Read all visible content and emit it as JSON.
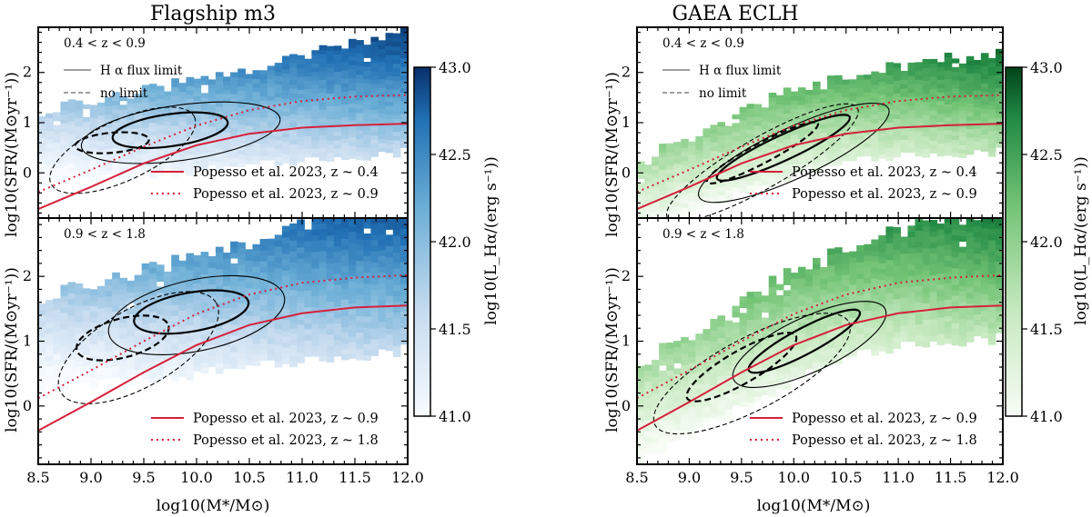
{
  "figure": {
    "shared": {
      "xlabel": "log10(M*/M⊙)",
      "ylabel": "log10(SFR/(M⊙yr⁻¹))",
      "xlim": [
        8.5,
        12.0
      ],
      "ylim_top": [
        -0.9,
        2.9
      ],
      "ylim_bottom": [
        -0.9,
        2.9
      ],
      "xticks": [
        "8.5",
        "9.0",
        "9.5",
        "10.0",
        "10.5",
        "11.0",
        "11.5",
        "12.0"
      ],
      "yticks": [
        "0",
        "1",
        "2"
      ],
      "colorbar_label": "log10(L_Hα/(erg s⁻¹))",
      "colorbar_ticks": [
        "41.0",
        "41.5",
        "42.0",
        "42.5",
        "43.0"
      ],
      "legend_solid": "H α flux limit",
      "legend_dashed": "no limit"
    },
    "colors": {
      "blue_cmap_low": "#f0f6fc",
      "blue_cmap_high": "#08306b",
      "green_cmap_low": "#f2faf0",
      "green_cmap_high": "#00441b",
      "popesso_line": "#d6203a"
    }
  },
  "chart_data": [
    {
      "type": "heatmap",
      "title": "Flagship m3",
      "panel": "top-left",
      "redshift_label": "0.4 < z < 0.9",
      "xlabel": "",
      "ylabel": "log10(SFR/(M⊙yr⁻¹))",
      "xlim": [
        8.5,
        12.0
      ],
      "ylim": [
        -0.9,
        2.9
      ],
      "color_range": [
        41.0,
        43.0
      ],
      "series": [
        {
          "name": "Popesso et al. 2023, z ~ 0.4",
          "style": "solid",
          "x": [
            8.5,
            9.0,
            9.5,
            10.0,
            10.5,
            11.0,
            11.5,
            12.0
          ],
          "y": [
            -0.72,
            -0.28,
            0.19,
            0.55,
            0.78,
            0.9,
            0.95,
            0.98
          ]
        },
        {
          "name": "Popesso et al. 2023, z ~ 0.9",
          "style": "dotted",
          "x": [
            8.5,
            9.0,
            9.5,
            10.0,
            10.5,
            11.0,
            11.5,
            12.0
          ],
          "y": [
            -0.38,
            0.06,
            0.52,
            0.94,
            1.25,
            1.43,
            1.52,
            1.55
          ]
        }
      ],
      "legend": [
        "Popesso et al. 2023, z ~ 0.4",
        "Popesso et al. 2023, z ~ 0.9"
      ]
    },
    {
      "type": "heatmap",
      "title": "GAEA ECLH",
      "panel": "top-right",
      "redshift_label": "0.4 < z < 0.9",
      "xlabel": "",
      "ylabel": "log10(SFR/(M⊙yr⁻¹))",
      "xlim": [
        8.5,
        12.0
      ],
      "ylim": [
        -0.9,
        2.9
      ],
      "color_range": [
        41.0,
        43.0
      ],
      "series": [
        {
          "name": "Popesso et al. 2023, z ~ 0.4",
          "style": "solid",
          "x": [
            8.5,
            9.0,
            9.5,
            10.0,
            10.5,
            11.0,
            11.5,
            12.0
          ],
          "y": [
            -0.72,
            -0.28,
            0.19,
            0.55,
            0.78,
            0.9,
            0.95,
            0.98
          ]
        },
        {
          "name": "Popesso et al. 2023, z ~ 0.9",
          "style": "dotted",
          "x": [
            8.5,
            9.0,
            9.5,
            10.0,
            10.5,
            11.0,
            11.5,
            12.0
          ],
          "y": [
            -0.38,
            0.06,
            0.52,
            0.94,
            1.25,
            1.43,
            1.52,
            1.55
          ]
        }
      ],
      "legend": [
        "Popesso et al. 2023, z ~ 0.4",
        "Popesso et al. 2023, z ~ 0.9"
      ]
    },
    {
      "type": "heatmap",
      "title": "",
      "panel": "bottom-left",
      "redshift_label": "0.9 < z < 1.8",
      "xlabel": "log10(M*/M⊙)",
      "ylabel": "log10(SFR/(M⊙yr⁻¹))",
      "xlim": [
        8.5,
        12.0
      ],
      "ylim": [
        -0.9,
        2.9
      ],
      "color_range": [
        41.0,
        43.0
      ],
      "series": [
        {
          "name": "Popesso et al. 2023, z ~ 0.9",
          "style": "solid",
          "x": [
            8.5,
            9.0,
            9.5,
            10.0,
            10.5,
            11.0,
            11.5,
            12.0
          ],
          "y": [
            -0.38,
            0.06,
            0.52,
            0.94,
            1.25,
            1.43,
            1.52,
            1.55
          ]
        },
        {
          "name": "Popesso et al. 2023, z ~ 1.8",
          "style": "dotted",
          "x": [
            8.5,
            9.0,
            9.5,
            10.0,
            10.5,
            11.0,
            11.5,
            12.0
          ],
          "y": [
            0.12,
            0.55,
            1.0,
            1.42,
            1.72,
            1.9,
            1.98,
            2.02
          ]
        }
      ],
      "legend": [
        "Popesso et al. 2023, z ~ 0.9",
        "Popesso et al. 2023, z ~ 1.8"
      ]
    },
    {
      "type": "heatmap",
      "title": "",
      "panel": "bottom-right",
      "redshift_label": "0.9 < z < 1.8",
      "xlabel": "log10(M*/M⊙)",
      "ylabel": "log10(SFR/(M⊙yr⁻¹))",
      "xlim": [
        8.5,
        12.0
      ],
      "ylim": [
        -0.9,
        2.9
      ],
      "color_range": [
        41.0,
        43.0
      ],
      "series": [
        {
          "name": "Popesso et al. 2023, z ~ 0.9",
          "style": "solid",
          "x": [
            8.5,
            9.0,
            9.5,
            10.0,
            10.5,
            11.0,
            11.5,
            12.0
          ],
          "y": [
            -0.38,
            0.06,
            0.52,
            0.94,
            1.25,
            1.43,
            1.52,
            1.55
          ]
        },
        {
          "name": "Popesso et al. 2023, z ~ 1.8",
          "style": "dotted",
          "x": [
            8.5,
            9.0,
            9.5,
            10.0,
            10.5,
            11.0,
            11.5,
            12.0
          ],
          "y": [
            0.12,
            0.55,
            1.0,
            1.42,
            1.72,
            1.9,
            1.98,
            2.02
          ]
        }
      ],
      "legend": [
        "Popesso et al. 2023, z ~ 0.9",
        "Popesso et al. 2023, z ~ 1.8"
      ]
    }
  ]
}
